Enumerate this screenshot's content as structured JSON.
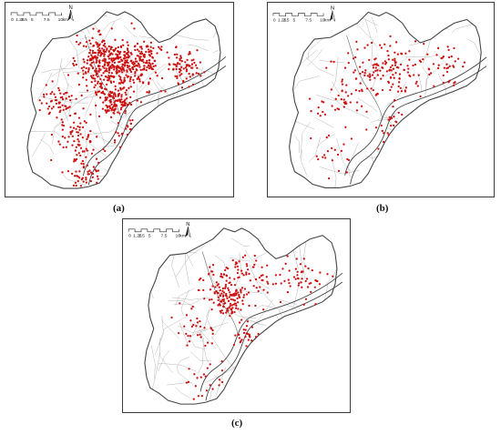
{
  "figure": {
    "panels": [
      {
        "id": "a",
        "caption": "(a)",
        "scale_bar": {
          "ticks": [
            "0",
            "1.25",
            "2.5",
            "5",
            "7.5",
            "10"
          ],
          "unit": "km"
        },
        "north_label": "N",
        "point_density": "very high"
      },
      {
        "id": "b",
        "caption": "(b)",
        "scale_bar": {
          "ticks": [
            "0",
            "1.25",
            "2.5",
            "5",
            "7.5",
            "10"
          ],
          "unit": "km"
        },
        "north_label": "N",
        "point_density": "medium"
      },
      {
        "id": "c",
        "caption": "(c)",
        "scale_bar": {
          "ticks": [
            "0",
            "1.25",
            "2.5",
            "5",
            "7.5",
            "10"
          ],
          "unit": "km"
        },
        "north_label": "N",
        "point_density": "medium"
      }
    ]
  },
  "colors": {
    "points": "#cc1111",
    "boundary": "#444444",
    "districts": "#b5b5b5",
    "panel_border": "#3a3a3a"
  }
}
